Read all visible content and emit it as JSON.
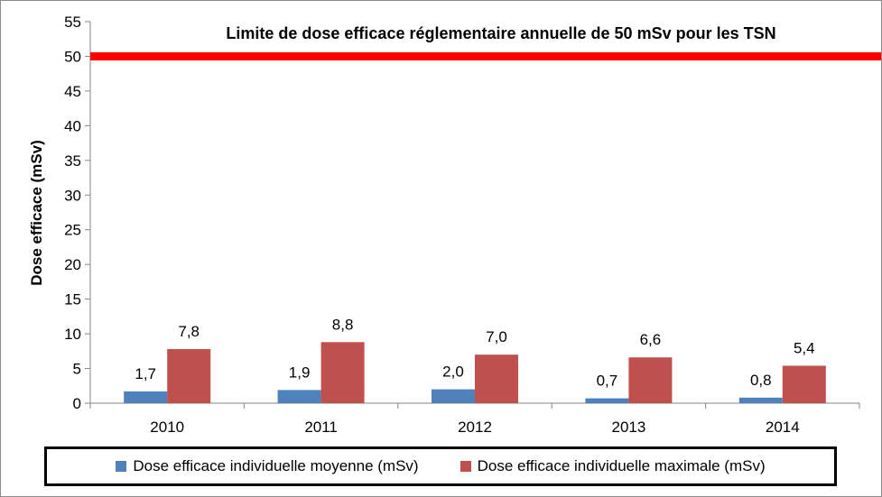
{
  "chart_data": {
    "type": "bar",
    "categories": [
      "2010",
      "2011",
      "2012",
      "2013",
      "2014"
    ],
    "series": [
      {
        "name": "Dose efficace individuelle moyenne (mSv)",
        "color": "#4f81bd",
        "values": [
          1.7,
          1.9,
          2.0,
          0.7,
          0.8
        ],
        "labels": [
          "1,7",
          "1,9",
          "2,0",
          "0,7",
          "0,8"
        ]
      },
      {
        "name": "Dose efficace individuelle maximale (mSv)",
        "color": "#c0504d",
        "values": [
          7.8,
          8.8,
          7.0,
          6.6,
          5.4
        ],
        "labels": [
          "7,8",
          "8,8",
          "7,0",
          "6,6",
          "5,4"
        ]
      }
    ],
    "ylabel": "Dose efficace  (mSv)",
    "ylim": [
      0,
      55
    ],
    "yticks": [
      0,
      5,
      10,
      15,
      20,
      25,
      30,
      35,
      40,
      45,
      50,
      55
    ],
    "reference_line": {
      "value": 50,
      "color": "#ff0000",
      "label": "Limite de dose efficace réglementaire annuelle de 50 mSv pour  les TSN"
    },
    "grid": false,
    "legend": "bottom"
  }
}
